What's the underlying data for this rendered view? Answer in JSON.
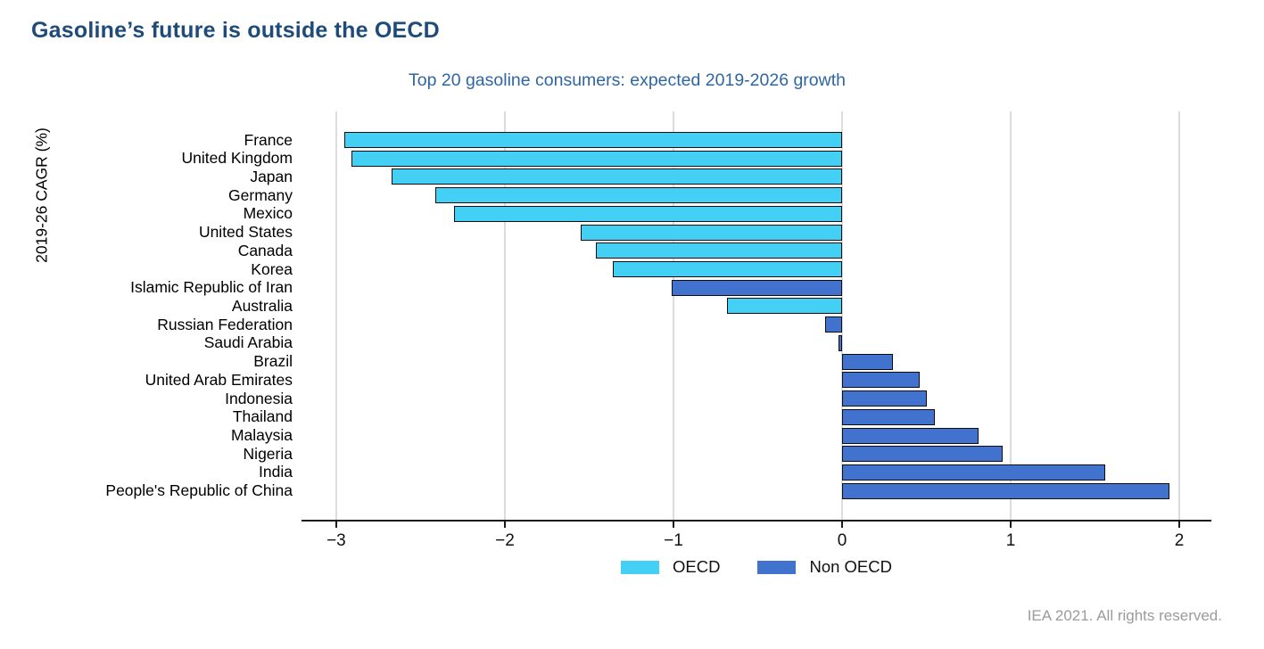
{
  "page": {
    "title": "Gasoline’s future is outside the OECD",
    "footer": "IEA 2021. All rights reserved."
  },
  "colors": {
    "title": "#1E4B7A",
    "subtitle": "#2F66A2",
    "footer": "#9B9B9B",
    "oecd": "#44D0F4",
    "non_oecd": "#4173CE",
    "bar_border": "#0D0D0D",
    "gridline": "#DCDCDC",
    "axis": "#1A1A1A"
  },
  "chart_data": {
    "type": "bar",
    "orientation": "horizontal",
    "title": "Top 20 gasoline consumers: expected 2019-2026 growth",
    "ylabel": "2019-26 CAGR (%)",
    "xlabel": "",
    "grid": "vertical",
    "legend_position": "bottom",
    "xlim": [
      -3.19,
      2.19
    ],
    "xticks": [
      -3,
      -2,
      -1,
      0,
      1,
      2
    ],
    "xtick_labels": [
      "−3",
      "−2",
      "−1",
      "0",
      "1",
      "2"
    ],
    "categories": [
      "France",
      "United Kingdom",
      "Japan",
      "Germany",
      "Mexico",
      "United States",
      "Canada",
      "Korea",
      "Islamic Republic of Iran",
      "Australia",
      "Russian Federation",
      "Saudi Arabia",
      "Brazil",
      "United Arab Emirates",
      "Indonesia",
      "Thailand",
      "Malaysia",
      "Nigeria",
      "India",
      "People's Republic of China"
    ],
    "values": [
      -2.95,
      -2.91,
      -2.67,
      -2.41,
      -2.3,
      -1.55,
      -1.46,
      -1.36,
      -1.01,
      -0.68,
      -0.1,
      -0.02,
      0.3,
      0.46,
      0.5,
      0.55,
      0.81,
      0.95,
      1.56,
      1.94
    ],
    "bar_group": [
      "OECD",
      "OECD",
      "OECD",
      "OECD",
      "OECD",
      "OECD",
      "OECD",
      "OECD",
      "Non OECD",
      "OECD",
      "Non OECD",
      "Non OECD",
      "Non OECD",
      "Non OECD",
      "Non OECD",
      "Non OECD",
      "Non OECD",
      "Non OECD",
      "Non OECD",
      "Non OECD"
    ],
    "legend": [
      {
        "label": "OECD",
        "color": "#44D0F4"
      },
      {
        "label": "Non OECD",
        "color": "#4173CE"
      }
    ]
  }
}
